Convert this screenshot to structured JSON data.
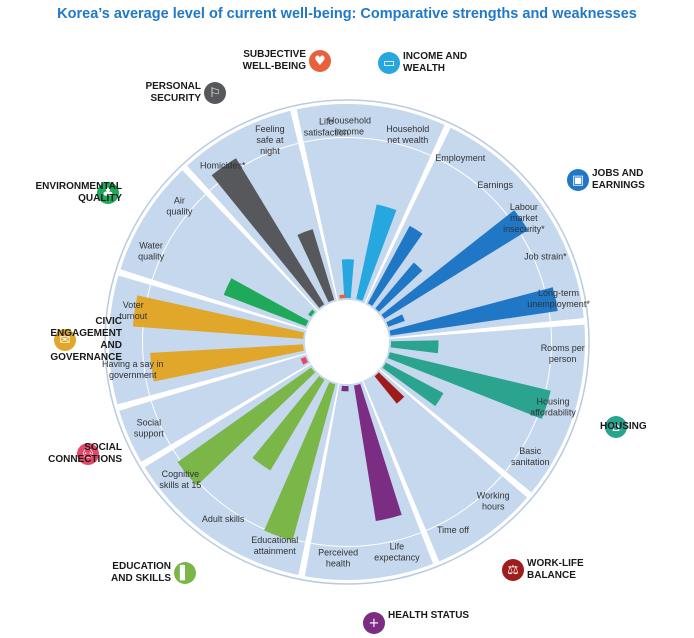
{
  "title": "Korea’s average level of current well-being: Comparative strengths and weaknesses",
  "colors": {
    "title": "#1f78c8",
    "ring": "#c5d8ee",
    "divider": "#ffffff",
    "outline": "#b9cbe2"
  },
  "chart_data": {
    "type": "radial-bar",
    "title": "Korea’s average level of current well-being: Comparative strengths and weaknesses",
    "dimensions": [
      {
        "name": [
          "INCOME AND",
          "WEALTH"
        ],
        "icon": "wallet-icon",
        "color": "#27a7df",
        "indicators": [
          {
            "label": [
              "Household",
              "income"
            ],
            "value": 0.22
          },
          {
            "label": [
              "Household",
              "net wealth"
            ],
            "value": 0.55
          }
        ]
      },
      {
        "name": [
          "JOBS AND",
          "EARNINGS"
        ],
        "icon": "briefcase-icon",
        "color": "#1f77c5",
        "indicators": [
          {
            "label": [
              "Employment"
            ],
            "value": 0.5
          },
          {
            "label": [
              "Earnings"
            ],
            "value": 0.34
          },
          {
            "label": [
              "Labour",
              "market",
              "insecurity*"
            ],
            "value": 0.96
          },
          {
            "label": [
              "Job strain*"
            ],
            "value": 0.1
          },
          {
            "label": [
              "Long-term",
              "unemployment*"
            ],
            "value": 0.96
          }
        ]
      },
      {
        "name": [
          "HOUSING"
        ],
        "icon": "house-icon",
        "color": "#2aa38f",
        "indicators": [
          {
            "label": [
              "Rooms per",
              "person"
            ],
            "value": 0.27
          },
          {
            "label": [
              "Housing",
              "affordability"
            ],
            "value": 0.94
          },
          {
            "label": [
              "Basic",
              "sanitation"
            ],
            "value": 0.37
          }
        ]
      },
      {
        "name": [
          "WORK-LIFE",
          "BALANCE"
        ],
        "icon": "scales-icon",
        "color": "#9e1c1c",
        "indicators": [
          {
            "label": [
              "Working",
              "hours"
            ],
            "value": 0.2
          },
          {
            "label": [
              "Time off"
            ],
            "value": 0.0
          }
        ]
      },
      {
        "name": [
          "HEALTH STATUS"
        ],
        "icon": "cross-icon",
        "color": "#7b2c83",
        "indicators": [
          {
            "label": [
              "Life",
              "expectancy"
            ],
            "value": 0.78
          },
          {
            "label": [
              "Perceived",
              "health"
            ],
            "value": 0.03
          }
        ]
      },
      {
        "name": [
          "EDUCATION",
          "AND SKILLS"
        ],
        "icon": "book-icon",
        "color": "#7ab648",
        "indicators": [
          {
            "label": [
              "Educational",
              "attainment"
            ],
            "value": 0.92
          },
          {
            "label": [
              "Adult skills"
            ],
            "value": 0.6
          },
          {
            "label": [
              "Cognitive",
              "skills at 15"
            ],
            "value": 0.93
          }
        ]
      },
      {
        "name": [
          "SOCIAL",
          "CONNECTIONS"
        ],
        "icon": "people-icon",
        "color": "#e5476a",
        "indicators": [
          {
            "label": [
              "Social",
              "support"
            ],
            "value": 0.03
          }
        ]
      },
      {
        "name": [
          "CIVIC",
          "ENGAGEMENT",
          "AND",
          "GOVERNANCE"
        ],
        "icon": "ballot-icon",
        "color": "#e0a72a",
        "indicators": [
          {
            "label": [
              "Having a say in",
              "government"
            ],
            "value": 0.87
          },
          {
            "label": [
              "Voter",
              "turnout"
            ],
            "value": 0.97
          }
        ]
      },
      {
        "name": [
          "ENVIRONMENTAL",
          "QUALITY"
        ],
        "icon": "tree-icon",
        "color": "#1eaa5a",
        "indicators": [
          {
            "label": [
              "Water",
              "quality"
            ],
            "value": 0.5
          },
          {
            "label": [
              "Air",
              "quality"
            ],
            "value": 0.02
          }
        ]
      },
      {
        "name": [
          "PERSONAL",
          "SECURITY"
        ],
        "icon": "running-person-icon",
        "color": "#56585c",
        "indicators": [
          {
            "label": [
              "Homicides*"
            ],
            "value": 0.97
          },
          {
            "label": [
              "Feeling",
              "safe at",
              "night"
            ],
            "value": 0.42
          }
        ]
      },
      {
        "name": [
          "SUBJECTIVE",
          "WELL-BEING"
        ],
        "icon": "heart-icon",
        "color": "#e8613c",
        "indicators": [
          {
            "label": [
              "Life",
              "satisfaction"
            ],
            "value": 0.02
          }
        ]
      }
    ]
  }
}
